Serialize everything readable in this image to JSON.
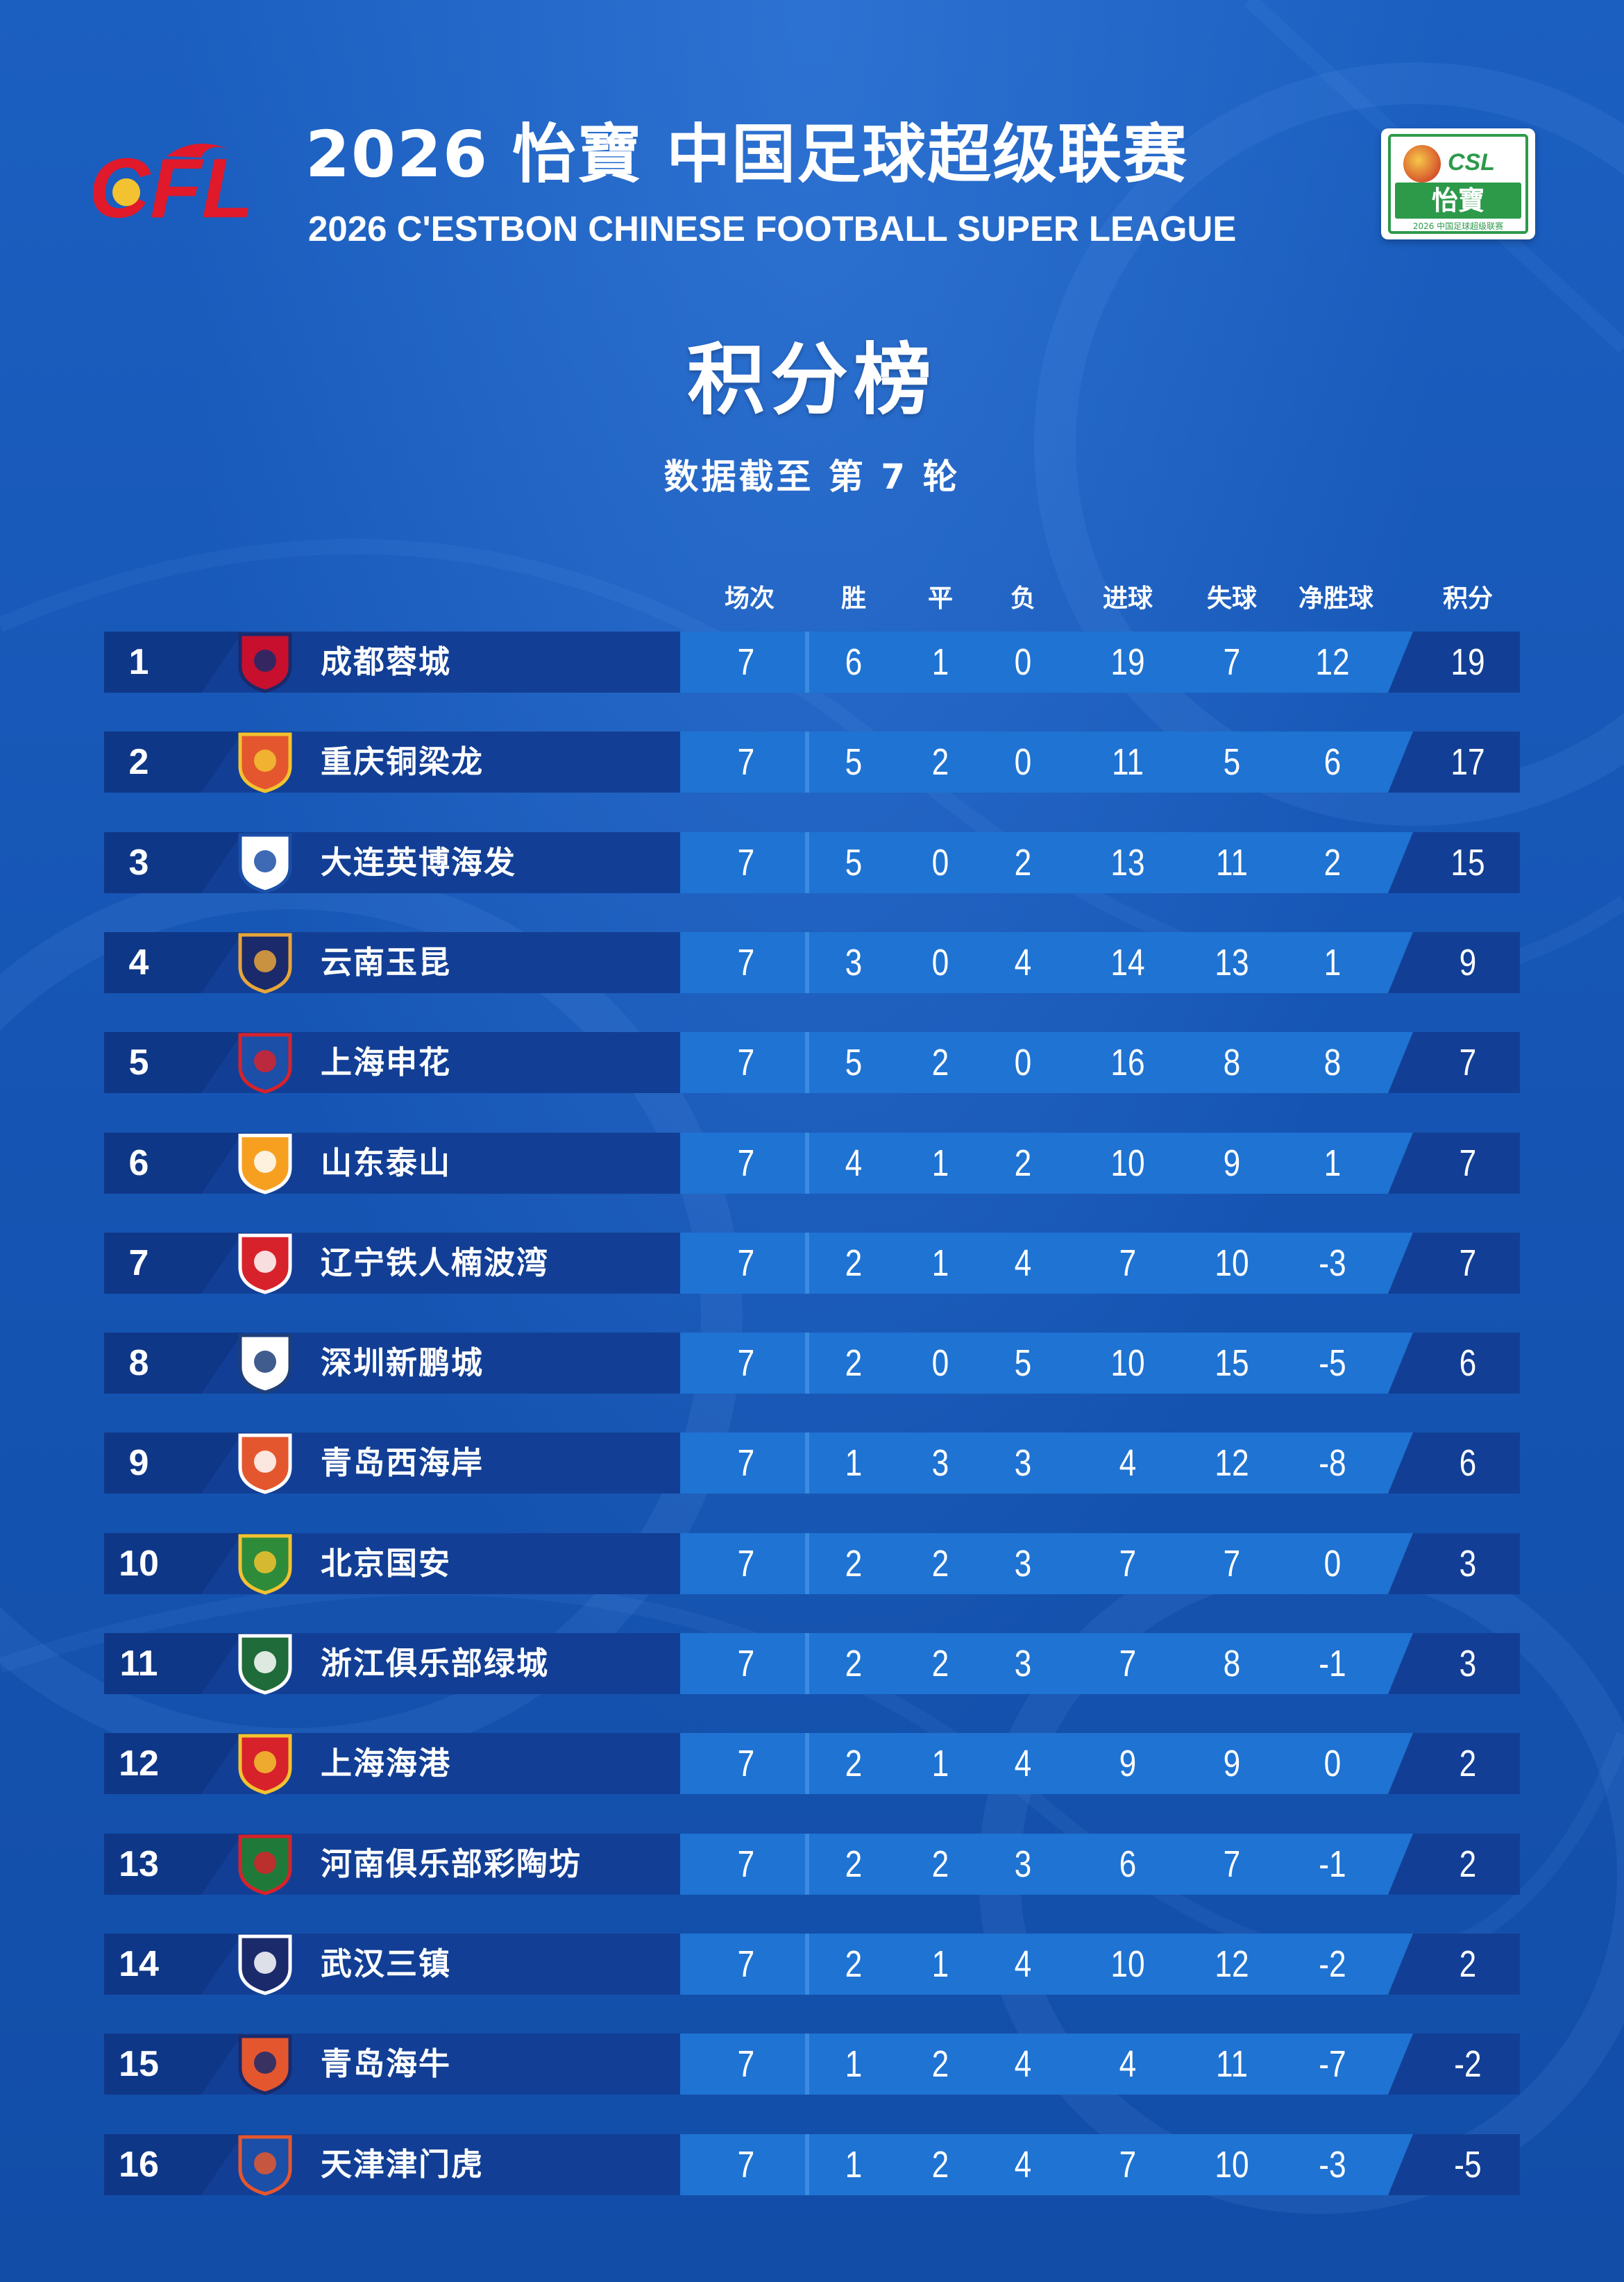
{
  "header": {
    "title_cn": "2026 怡寶 中国足球超级联赛",
    "title_en": "2026 C'ESTBON CHINESE FOOTBALL SUPER LEAGUE",
    "left_logo_text": "CFL",
    "right_logo": {
      "top": "CSL",
      "brand": "怡寶",
      "sub": "2026 中国足球超级联赛"
    }
  },
  "page": {
    "title": "积分榜",
    "subtitle": "数据截至 第 7 轮"
  },
  "columns": [
    "场次",
    "胜",
    "平",
    "负",
    "进球",
    "失球",
    "净胜球",
    "积分"
  ],
  "colors": {
    "background": "#1758b8",
    "row_left": "#123f95",
    "row_right": "#1f73d2",
    "text": "#ffffff"
  },
  "standings": [
    {
      "rank": "1",
      "team": "成都蓉城",
      "badge_icon": "chengdu-rongcheng-badge",
      "played": "7",
      "won": "6",
      "drawn": "1",
      "lost": "0",
      "gf": "19",
      "ga": "7",
      "gd": "12",
      "pts": "19"
    },
    {
      "rank": "2",
      "team": "重庆铜梁龙",
      "badge_icon": "chongqing-tongliang-badge",
      "played": "7",
      "won": "5",
      "drawn": "2",
      "lost": "0",
      "gf": "11",
      "ga": "5",
      "gd": "6",
      "pts": "17"
    },
    {
      "rank": "3",
      "team": "大连英博海发",
      "badge_icon": "dalian-yingbo-badge",
      "played": "7",
      "won": "5",
      "drawn": "0",
      "lost": "2",
      "gf": "13",
      "ga": "11",
      "gd": "2",
      "pts": "15"
    },
    {
      "rank": "4",
      "team": "云南玉昆",
      "badge_icon": "yunnan-yukun-badge",
      "played": "7",
      "won": "3",
      "drawn": "0",
      "lost": "4",
      "gf": "14",
      "ga": "13",
      "gd": "1",
      "pts": "9"
    },
    {
      "rank": "5",
      "team": "上海申花",
      "badge_icon": "shanghai-shenhua-badge",
      "played": "7",
      "won": "5",
      "drawn": "2",
      "lost": "0",
      "gf": "16",
      "ga": "8",
      "gd": "8",
      "pts": "7"
    },
    {
      "rank": "6",
      "team": "山东泰山",
      "badge_icon": "shandong-taishan-badge",
      "played": "7",
      "won": "4",
      "drawn": "1",
      "lost": "2",
      "gf": "10",
      "ga": "9",
      "gd": "1",
      "pts": "7"
    },
    {
      "rank": "7",
      "team": "辽宁铁人楠波湾",
      "badge_icon": "liaoning-tieren-badge",
      "played": "7",
      "won": "2",
      "drawn": "1",
      "lost": "4",
      "gf": "7",
      "ga": "10",
      "gd": "-3",
      "pts": "7"
    },
    {
      "rank": "8",
      "team": "深圳新鹏城",
      "badge_icon": "shenzhen-peng-city-badge",
      "played": "7",
      "won": "2",
      "drawn": "0",
      "lost": "5",
      "gf": "10",
      "ga": "15",
      "gd": "-5",
      "pts": "6"
    },
    {
      "rank": "9",
      "team": "青岛西海岸",
      "badge_icon": "qingdao-west-coast-badge",
      "played": "7",
      "won": "1",
      "drawn": "3",
      "lost": "3",
      "gf": "4",
      "ga": "12",
      "gd": "-8",
      "pts": "6"
    },
    {
      "rank": "10",
      "team": "北京国安",
      "badge_icon": "beijing-guoan-badge",
      "played": "7",
      "won": "2",
      "drawn": "2",
      "lost": "3",
      "gf": "7",
      "ga": "7",
      "gd": "0",
      "pts": "3"
    },
    {
      "rank": "11",
      "team": "浙江俱乐部绿城",
      "badge_icon": "zhejiang-greentown-badge",
      "played": "7",
      "won": "2",
      "drawn": "2",
      "lost": "3",
      "gf": "7",
      "ga": "8",
      "gd": "-1",
      "pts": "3"
    },
    {
      "rank": "12",
      "team": "上海海港",
      "badge_icon": "shanghai-port-badge",
      "played": "7",
      "won": "2",
      "drawn": "1",
      "lost": "4",
      "gf": "9",
      "ga": "9",
      "gd": "0",
      "pts": "2"
    },
    {
      "rank": "13",
      "team": "河南俱乐部彩陶坊",
      "badge_icon": "henan-badge",
      "played": "7",
      "won": "2",
      "drawn": "2",
      "lost": "3",
      "gf": "6",
      "ga": "7",
      "gd": "-1",
      "pts": "2"
    },
    {
      "rank": "14",
      "team": "武汉三镇",
      "badge_icon": "wuhan-three-towns-badge",
      "played": "7",
      "won": "2",
      "drawn": "1",
      "lost": "4",
      "gf": "10",
      "ga": "12",
      "gd": "-2",
      "pts": "2"
    },
    {
      "rank": "15",
      "team": "青岛海牛",
      "badge_icon": "qingdao-hainiu-badge",
      "played": "7",
      "won": "1",
      "drawn": "2",
      "lost": "4",
      "gf": "4",
      "ga": "11",
      "gd": "-7",
      "pts": "-2"
    },
    {
      "rank": "16",
      "team": "天津津门虎",
      "badge_icon": "tianjin-jinmen-tiger-badge",
      "played": "7",
      "won": "1",
      "drawn": "2",
      "lost": "4",
      "gf": "7",
      "ga": "10",
      "gd": "-3",
      "pts": "-5"
    }
  ]
}
